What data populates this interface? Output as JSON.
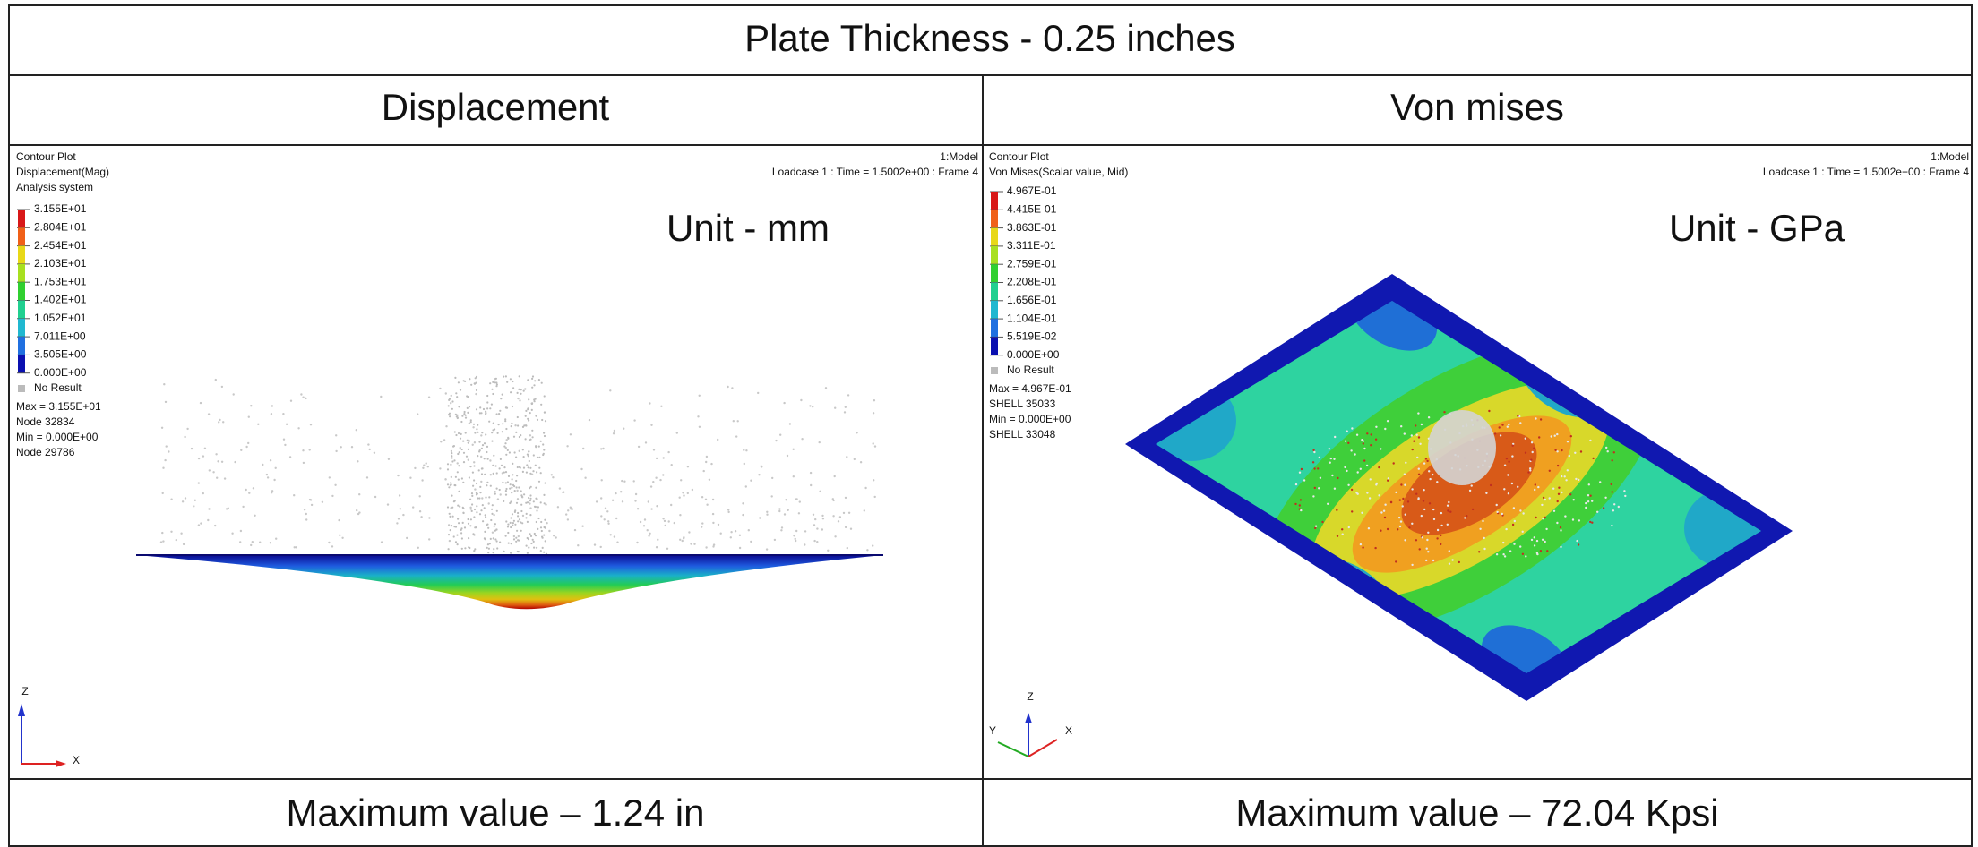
{
  "title": "Plate Thickness - 0.25 inches",
  "panels": [
    {
      "header": "Displacement",
      "plot": {
        "lines": [
          "Contour Plot",
          "Displacement(Mag)",
          "Analysis system"
        ],
        "legend": [
          "3.155E+01",
          "2.804E+01",
          "2.454E+01",
          "2.103E+01",
          "1.753E+01",
          "1.402E+01",
          "1.052E+01",
          "7.011E+00",
          "3.505E+00",
          "0.000E+00"
        ],
        "no_result": "No Result",
        "stats": [
          "Max = 3.155E+01",
          "Node 32834",
          "Min = 0.000E+00",
          "Node 29786"
        ],
        "model": "1:Model",
        "loadcase": "Loadcase 1 : Time = 1.5002e+00 : Frame 4",
        "unit": "Unit - mm",
        "axes": [
          "Z",
          "X"
        ]
      },
      "footer": "Maximum value – 1.24 in"
    },
    {
      "header": "Von mises",
      "plot": {
        "lines": [
          "Contour Plot",
          "Von Mises(Scalar value, Mid)"
        ],
        "legend": [
          "4.967E-01",
          "4.415E-01",
          "3.863E-01",
          "3.311E-01",
          "2.759E-01",
          "2.208E-01",
          "1.656E-01",
          "1.104E-01",
          "5.519E-02",
          "0.000E+00"
        ],
        "no_result": "No Result",
        "stats": [
          "Max = 4.967E-01",
          "SHELL 35033",
          "Min = 0.000E+00",
          "SHELL 33048"
        ],
        "model": "1:Model",
        "loadcase": "Loadcase 1 : Time = 1.5002e+00 : Frame 4",
        "unit": "Unit - GPa",
        "axes": [
          "Z",
          "Y",
          "X"
        ]
      },
      "footer": "Maximum value – 72.04 Kpsi"
    }
  ]
}
